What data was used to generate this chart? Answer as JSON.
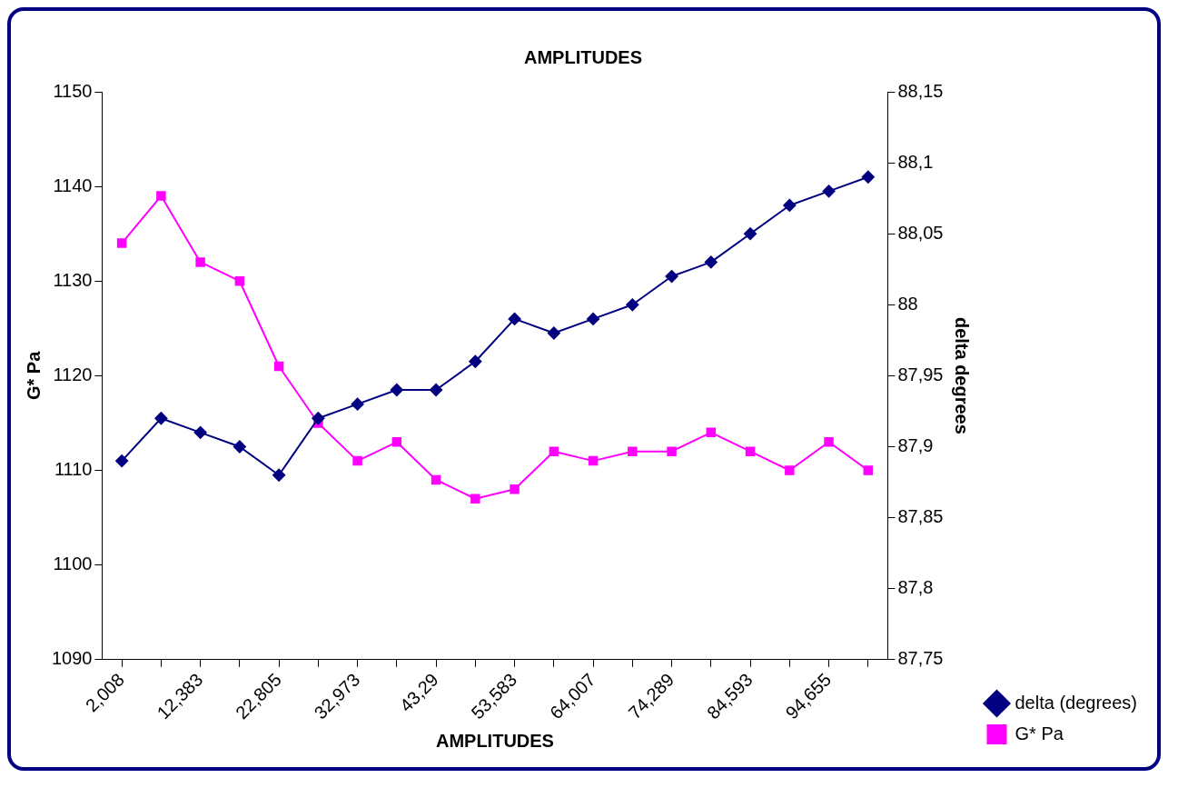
{
  "chart_data": {
    "type": "line",
    "title": "AMPLITUDES",
    "xlabel": "AMPLITUDES",
    "ylabel": "G* Pa",
    "y2label": "delta degrees",
    "categories": [
      "2,008",
      null,
      "12,383",
      null,
      "22,805",
      null,
      "32,973",
      null,
      "43,29",
      null,
      "53,583",
      null,
      "64,007",
      null,
      "74,289",
      null,
      "84,593",
      null,
      "94,655",
      null
    ],
    "series": [
      {
        "name": "G* Pa",
        "color": "#ff00ff",
        "marker": "square",
        "values": [
          1134,
          1139,
          1132,
          1130,
          1121,
          1115,
          1111,
          1113,
          1109,
          1107,
          1108,
          1112,
          1111,
          1112,
          1112,
          1114,
          1112,
          1110,
          1113,
          1110
        ]
      },
      {
        "name": "delta (degrees)",
        "color": "#000080",
        "marker": "diamond",
        "axis": "y2",
        "values": [
          87.89,
          87.92,
          87.91,
          87.9,
          87.88,
          87.92,
          87.93,
          87.94,
          87.94,
          87.96,
          87.99,
          87.98,
          87.99,
          88.0,
          88.02,
          88.03,
          88.05,
          88.07,
          88.08,
          88.09
        ]
      }
    ],
    "ylim": [
      1090,
      1150
    ],
    "yticks": [
      1090,
      1100,
      1110,
      1120,
      1130,
      1140,
      1150
    ],
    "y2lim": [
      87.75,
      88.15
    ],
    "y2ticks": [
      {
        "value": 87.75,
        "label": "87,75"
      },
      {
        "value": 87.8,
        "label": "87,8"
      },
      {
        "value": 87.85,
        "label": "87,85"
      },
      {
        "value": 87.9,
        "label": "87,9"
      },
      {
        "value": 87.95,
        "label": "87,95"
      },
      {
        "value": 88,
        "label": "88"
      },
      {
        "value": 88.05,
        "label": "88,05"
      },
      {
        "value": 88.1,
        "label": "88,1"
      },
      {
        "value": 88.15,
        "label": "88,15"
      }
    ],
    "grid": false,
    "legend": "right"
  }
}
